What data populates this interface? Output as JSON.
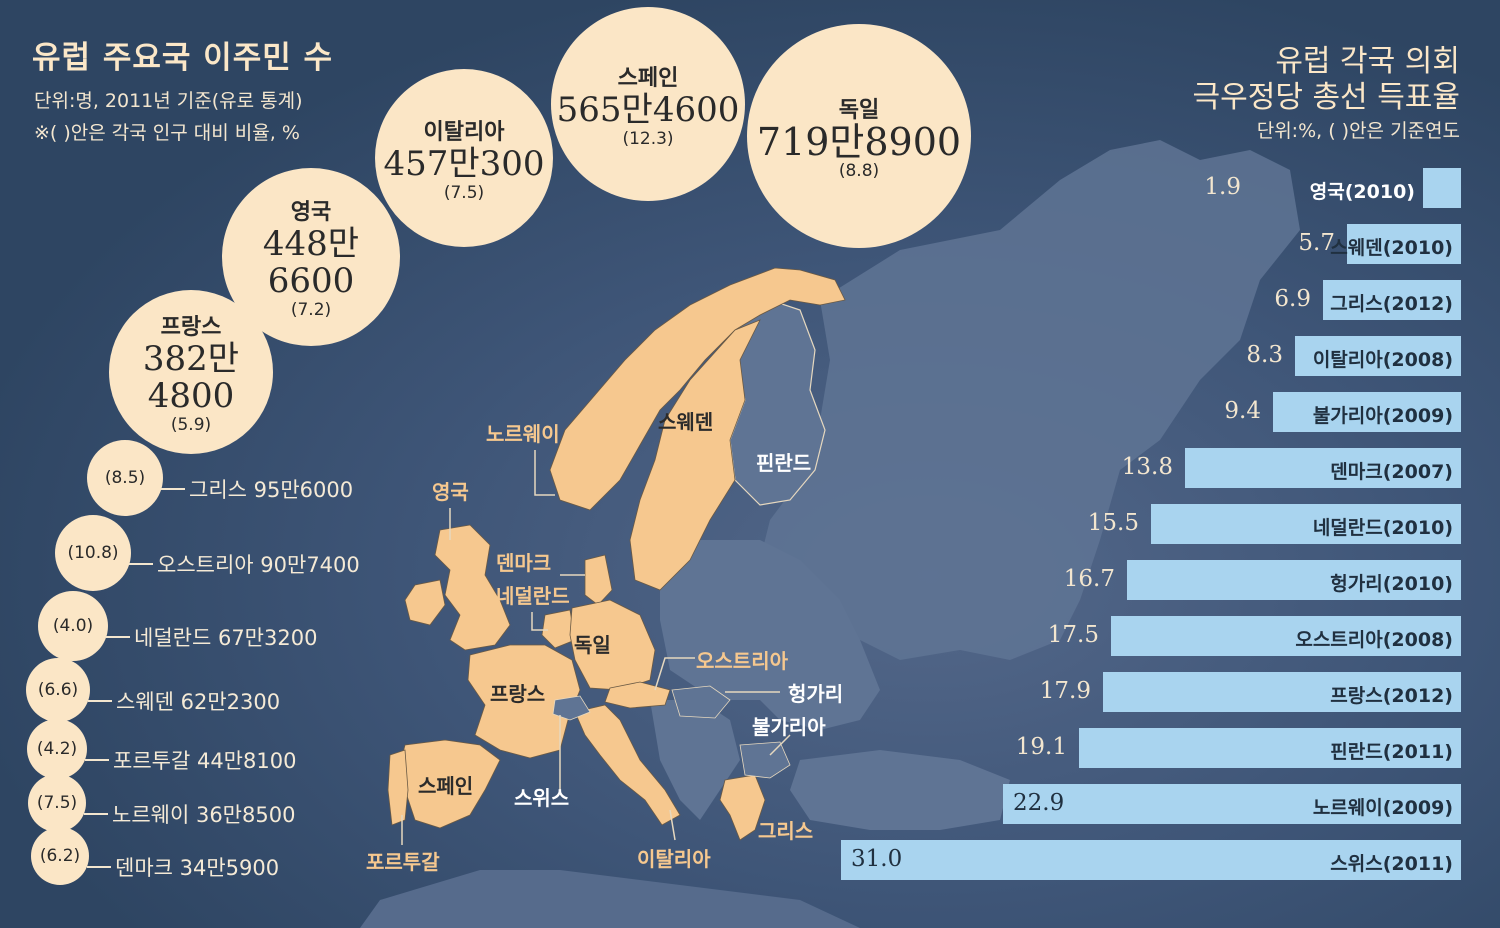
{
  "left_panel": {
    "title": "유럽 주요국 이주민 수",
    "subtitle_1": "단위:명, 2011년 기준(유로 통계)",
    "subtitle_2": "※( )안은 각국 인구 대비 비율, %"
  },
  "right_panel": {
    "title_1": "유럽 각국 의회",
    "title_2": "극우정당 총선 득표율",
    "subtitle": "단위:%, ( )안은 기준연도"
  },
  "colors": {
    "background": "#2e4562",
    "bubble": "#fbe6c6",
    "bar": "#a9d4ef",
    "land_highlight": "#f6c88f",
    "land_other": "#5f7494"
  },
  "chart_data": [
    {
      "type": "bubble",
      "unit": "명",
      "large": [
        {
          "name": "프랑스",
          "display_value": [
            "382만",
            "4800"
          ],
          "value": 3824800,
          "percent": "(5.9)"
        },
        {
          "name": "영국",
          "display_value": [
            "448만",
            "6600"
          ],
          "value": 4486600,
          "percent": "(7.2)"
        },
        {
          "name": "이탈리아",
          "display_value": [
            "457만300"
          ],
          "value": 4570300,
          "percent": "(7.5)"
        },
        {
          "name": "스페인",
          "display_value": [
            "565만4600"
          ],
          "value": 5654600,
          "percent": "(12.3)"
        },
        {
          "name": "독일",
          "display_value": [
            "719만8900"
          ],
          "value": 7198900,
          "percent": "(8.8)"
        }
      ],
      "small": [
        {
          "percent": "(8.5)",
          "label": "그리스  95만6000",
          "value": 956000
        },
        {
          "percent": "(10.8)",
          "label": "오스트리아  90만7400",
          "value": 907400
        },
        {
          "percent": "(4.0)",
          "label": "네덜란드  67만3200",
          "value": 673200
        },
        {
          "percent": "(6.6)",
          "label": "스웨덴  62만2300",
          "value": 622300
        },
        {
          "percent": "(4.2)",
          "label": "포르투갈  44만8100",
          "value": 448100
        },
        {
          "percent": "(7.5)",
          "label": "노르웨이  36만8500",
          "value": 368500
        },
        {
          "percent": "(6.2)",
          "label": "덴마크  34만5900",
          "value": 345900
        }
      ]
    },
    {
      "type": "bar",
      "orientation": "horizontal",
      "unit": "%",
      "categories": [
        "영국(2010)",
        "스웨덴(2010)",
        "그리스(2012)",
        "이탈리아(2008)",
        "불가리아(2009)",
        "덴마크(2007)",
        "네덜란드(2010)",
        "헝가리(2010)",
        "오스트리아(2008)",
        "프랑스(2012)",
        "핀란드(2011)",
        "노르웨이(2009)",
        "스위스(2011)"
      ],
      "values": [
        1.9,
        5.7,
        6.9,
        8.3,
        9.4,
        13.8,
        15.5,
        16.7,
        17.5,
        17.9,
        19.1,
        22.9,
        31.0
      ],
      "value_labels": [
        "1.9",
        "5.7",
        "6.9",
        "8.3",
        "9.4",
        "13.8",
        "15.5",
        "16.7",
        "17.5",
        "17.9",
        "19.1",
        "22.9",
        "31.0"
      ]
    }
  ],
  "map_labels": [
    {
      "name": "노르웨이",
      "color": "orange"
    },
    {
      "name": "스웨덴",
      "color": "dark"
    },
    {
      "name": "핀란드",
      "color": "white"
    },
    {
      "name": "영국",
      "color": "orange"
    },
    {
      "name": "덴마크",
      "color": "orange"
    },
    {
      "name": "네덜란드",
      "color": "orange"
    },
    {
      "name": "독일",
      "color": "dark"
    },
    {
      "name": "오스트리아",
      "color": "orange"
    },
    {
      "name": "프랑스",
      "color": "dark"
    },
    {
      "name": "헝가리",
      "color": "white"
    },
    {
      "name": "불가리아",
      "color": "white"
    },
    {
      "name": "스페인",
      "color": "dark"
    },
    {
      "name": "스위스",
      "color": "white"
    },
    {
      "name": "그리스",
      "color": "orange"
    },
    {
      "name": "포르투갈",
      "color": "orange"
    },
    {
      "name": "이탈리아",
      "color": "orange"
    }
  ]
}
